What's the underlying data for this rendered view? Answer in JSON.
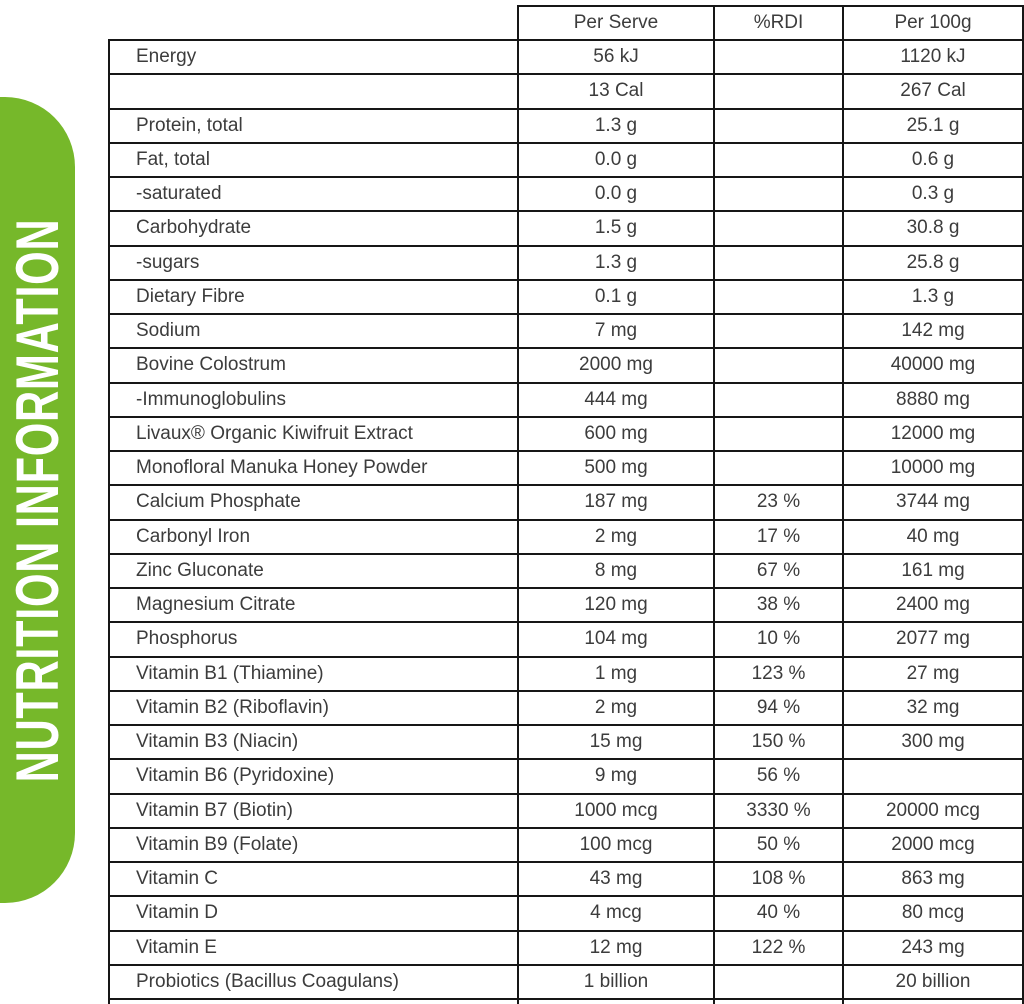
{
  "banner": {
    "text": "NUTRITION INFORMATION",
    "background_color": "#76b82a",
    "text_color": "#ffffff"
  },
  "table": {
    "columns": [
      "",
      "Per Serve",
      "%RDI",
      "Per 100g"
    ],
    "border_color": "#161616",
    "rows": [
      {
        "label": "Energy",
        "per_serve": "56 kJ",
        "rdi": "",
        "per_100g": "1120 kJ"
      },
      {
        "label": "",
        "per_serve": "13 Cal",
        "rdi": "",
        "per_100g": "267 Cal"
      },
      {
        "label": "Protein, total",
        "per_serve": "1.3 g",
        "rdi": "",
        "per_100g": "25.1 g"
      },
      {
        "label": "Fat, total",
        "per_serve": "0.0 g",
        "rdi": "",
        "per_100g": "0.6 g"
      },
      {
        "label": "-saturated",
        "per_serve": "0.0 g",
        "rdi": "",
        "per_100g": "0.3 g"
      },
      {
        "label": "Carbohydrate",
        "per_serve": "1.5 g",
        "rdi": "",
        "per_100g": "30.8 g"
      },
      {
        "label": "-sugars",
        "per_serve": "1.3 g",
        "rdi": "",
        "per_100g": "25.8 g"
      },
      {
        "label": "Dietary Fibre",
        "per_serve": "0.1 g",
        "rdi": "",
        "per_100g": "1.3 g"
      },
      {
        "label": "Sodium",
        "per_serve": "7 mg",
        "rdi": "",
        "per_100g": "142 mg"
      },
      {
        "label": "Bovine Colostrum",
        "per_serve": "2000 mg",
        "rdi": "",
        "per_100g": "40000 mg"
      },
      {
        "label": "-Immunoglobulins",
        "per_serve": "444 mg",
        "rdi": "",
        "per_100g": "8880 mg"
      },
      {
        "label": "Livaux® Organic Kiwifruit Extract",
        "per_serve": "600 mg",
        "rdi": "",
        "per_100g": "12000 mg"
      },
      {
        "label": "Monofloral Manuka Honey Powder",
        "per_serve": "500 mg",
        "rdi": "",
        "per_100g": "10000 mg"
      },
      {
        "label": "Calcium Phosphate",
        "per_serve": "187 mg",
        "rdi": "23 %",
        "per_100g": "3744 mg"
      },
      {
        "label": "Carbonyl Iron",
        "per_serve": "2 mg",
        "rdi": "17 %",
        "per_100g": "40 mg"
      },
      {
        "label": "Zinc Gluconate",
        "per_serve": "8 mg",
        "rdi": "67 %",
        "per_100g": "161 mg"
      },
      {
        "label": "Magnesium Citrate",
        "per_serve": "120 mg",
        "rdi": "38 %",
        "per_100g": "2400 mg"
      },
      {
        "label": "Phosphorus",
        "per_serve": "104 mg",
        "rdi": "10 %",
        "per_100g": "2077 mg"
      },
      {
        "label": "Vitamin B1 (Thiamine)",
        "per_serve": "1 mg",
        "rdi": "123 %",
        "per_100g": "27 mg"
      },
      {
        "label": "Vitamin B2 (Riboflavin)",
        "per_serve": "2 mg",
        "rdi": "94 %",
        "per_100g": "32 mg"
      },
      {
        "label": "Vitamin B3 (Niacin)",
        "per_serve": "15 mg",
        "rdi": "150 %",
        "per_100g": "300 mg"
      },
      {
        "label": "Vitamin B6 (Pyridoxine)",
        "per_serve": "9 mg",
        "rdi": "56 %",
        "per_100g": ""
      },
      {
        "label": "Vitamin B7 (Biotin)",
        "per_serve": "1000 mcg",
        "rdi": "3330 %",
        "per_100g": "20000 mcg"
      },
      {
        "label": "Vitamin B9 (Folate)",
        "per_serve": "100 mcg",
        "rdi": "50 %",
        "per_100g": "2000 mcg"
      },
      {
        "label": "Vitamin C",
        "per_serve": "43 mg",
        "rdi": "108 %",
        "per_100g": "863 mg"
      },
      {
        "label": "Vitamin D",
        "per_serve": "4 mcg",
        "rdi": "40 %",
        "per_100g": "80 mcg"
      },
      {
        "label": "Vitamin E",
        "per_serve": "12 mg",
        "rdi": "122 %",
        "per_100g": "243 mg"
      },
      {
        "label": "Probiotics (Bacillus Coagulans)",
        "per_serve": "1 billion",
        "rdi": "",
        "per_100g": "20 billion"
      }
    ]
  }
}
